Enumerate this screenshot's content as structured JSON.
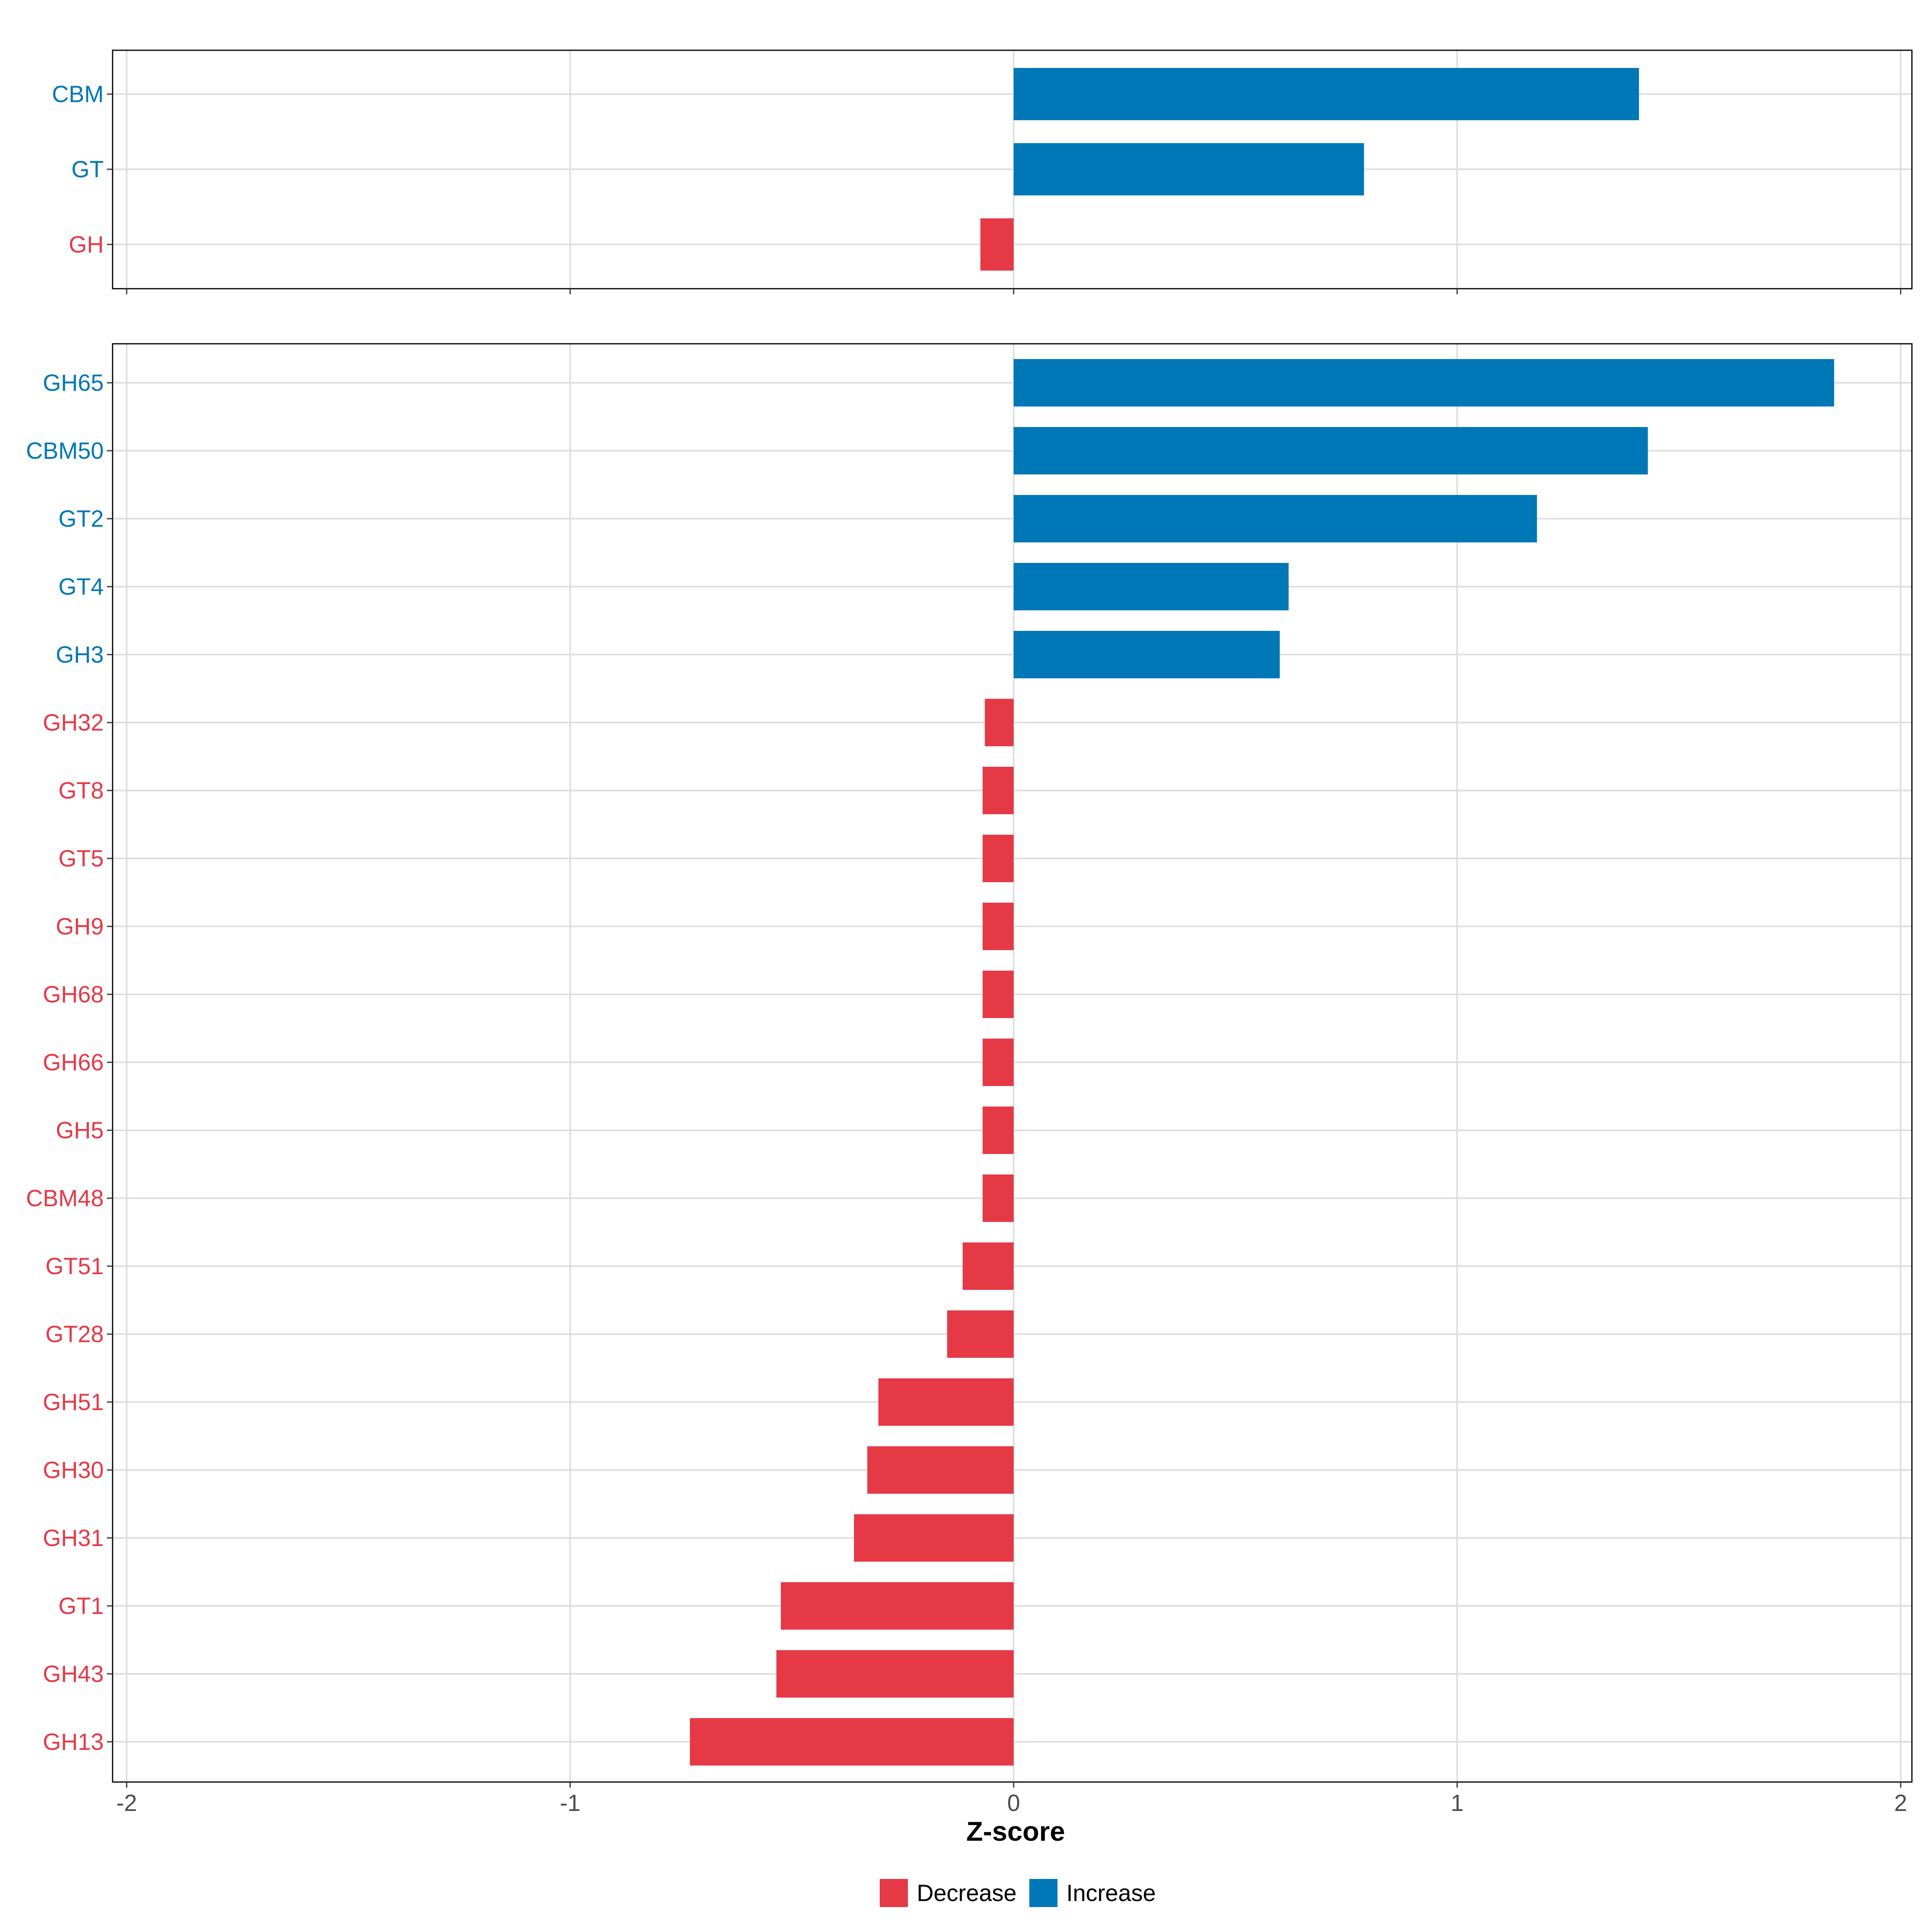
{
  "chart_data": [
    {
      "type": "bar",
      "orientation": "horizontal",
      "panel": "top",
      "categories": [
        "CBM",
        "GT",
        "GH"
      ],
      "values": [
        1.41,
        0.79,
        -0.075
      ],
      "groups": [
        "Increase",
        "Increase",
        "Decrease"
      ],
      "xlim": [
        -2,
        2
      ],
      "xticks": [
        "-2",
        "-1",
        "0",
        "1",
        "2"
      ],
      "grid": true
    },
    {
      "type": "bar",
      "orientation": "horizontal",
      "panel": "bottom",
      "categories": [
        "GH65",
        "CBM50",
        "GT2",
        "GT4",
        "GH3",
        "GH32",
        "GT8",
        "GT5",
        "GH9",
        "GH68",
        "GH66",
        "GH5",
        "CBM48",
        "GT51",
        "GT28",
        "GH51",
        "GH30",
        "GH31",
        "GT1",
        "GH43",
        "GH13"
      ],
      "values": [
        1.85,
        1.43,
        1.18,
        0.62,
        0.6,
        -0.065,
        -0.07,
        -0.07,
        -0.07,
        -0.07,
        -0.07,
        -0.07,
        -0.07,
        -0.115,
        -0.15,
        -0.305,
        -0.33,
        -0.36,
        -0.525,
        -0.535,
        -0.73
      ],
      "groups": [
        "Increase",
        "Increase",
        "Increase",
        "Increase",
        "Increase",
        "Decrease",
        "Decrease",
        "Decrease",
        "Decrease",
        "Decrease",
        "Decrease",
        "Decrease",
        "Decrease",
        "Decrease",
        "Decrease",
        "Decrease",
        "Decrease",
        "Decrease",
        "Decrease",
        "Decrease",
        "Decrease"
      ],
      "xlim": [
        -2,
        2
      ],
      "xticks": [
        "-2",
        "-1",
        "0",
        "1",
        "2"
      ],
      "grid": true
    }
  ],
  "xlabel": "Z-score",
  "legend": {
    "position": "bottom",
    "entries": [
      {
        "label": "Decrease",
        "color": "#E63946"
      },
      {
        "label": "Increase",
        "color": "#0077B6"
      }
    ]
  },
  "colors": {
    "Decrease": "#E63946",
    "Increase": "#0077B6",
    "grid": "#DEDEDE",
    "axis": "#000000"
  }
}
